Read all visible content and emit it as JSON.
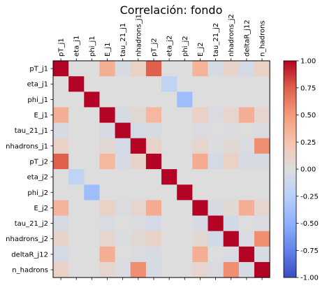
{
  "chart_data": {
    "type": "heatmap",
    "title": "Correlación: fondo",
    "labels": [
      "pT_j1",
      "eta_j1",
      "phi_j1",
      "E_j1",
      "tau_21_j1",
      "nhadrons_j1",
      "pT_j2",
      "eta_j2",
      "phi_j2",
      "E_j2",
      "tau_21_j2",
      "nhadrons_j2",
      "deltaR_j12",
      "n_hadrons"
    ],
    "matrix": [
      [
        1.0,
        0.0,
        0.0,
        0.38,
        -0.05,
        0.12,
        0.75,
        0.0,
        0.0,
        0.35,
        -0.05,
        0.1,
        -0.07,
        0.12
      ],
      [
        0.0,
        1.0,
        0.0,
        0.0,
        0.0,
        0.0,
        0.0,
        -0.2,
        0.0,
        0.0,
        0.0,
        0.0,
        0.0,
        0.0
      ],
      [
        0.0,
        0.0,
        1.0,
        0.0,
        0.0,
        0.0,
        0.0,
        0.0,
        -0.4,
        0.0,
        0.0,
        0.0,
        0.0,
        0.0
      ],
      [
        0.38,
        0.0,
        0.0,
        1.0,
        -0.05,
        0.05,
        0.32,
        0.0,
        0.0,
        0.12,
        -0.03,
        0.08,
        0.38,
        0.08
      ],
      [
        -0.05,
        0.0,
        0.0,
        -0.05,
        1.0,
        -0.07,
        -0.05,
        0.0,
        0.0,
        -0.03,
        0.0,
        -0.02,
        0.0,
        -0.03
      ],
      [
        0.12,
        0.0,
        0.0,
        0.05,
        -0.07,
        1.0,
        0.1,
        0.0,
        0.0,
        0.08,
        -0.02,
        0.05,
        -0.03,
        0.55
      ],
      [
        0.75,
        0.0,
        0.0,
        0.32,
        -0.05,
        0.1,
        1.0,
        0.0,
        0.0,
        0.4,
        -0.07,
        0.12,
        -0.05,
        -0.05
      ],
      [
        0.0,
        -0.2,
        0.0,
        0.0,
        0.0,
        0.0,
        0.0,
        1.0,
        0.0,
        0.0,
        0.0,
        0.0,
        0.0,
        0.0
      ],
      [
        0.0,
        0.0,
        -0.4,
        0.0,
        0.0,
        0.0,
        0.0,
        0.0,
        1.0,
        0.0,
        0.0,
        0.0,
        0.0,
        0.0
      ],
      [
        0.35,
        0.0,
        0.0,
        0.12,
        -0.03,
        0.08,
        0.4,
        0.0,
        0.0,
        1.0,
        -0.05,
        0.05,
        0.38,
        0.08
      ],
      [
        -0.05,
        0.0,
        0.0,
        -0.03,
        0.0,
        -0.02,
        -0.07,
        0.0,
        0.0,
        -0.05,
        1.0,
        -0.08,
        0.0,
        -0.03
      ],
      [
        0.1,
        0.0,
        0.0,
        0.08,
        -0.02,
        0.05,
        0.12,
        0.0,
        0.0,
        0.05,
        -0.08,
        1.0,
        -0.03,
        0.55
      ],
      [
        -0.07,
        0.0,
        0.0,
        0.38,
        0.0,
        -0.03,
        -0.05,
        0.0,
        0.0,
        0.38,
        0.0,
        -0.03,
        1.0,
        -0.05
      ],
      [
        0.12,
        0.0,
        0.0,
        0.08,
        -0.03,
        0.55,
        -0.05,
        0.0,
        0.0,
        0.08,
        -0.03,
        0.55,
        -0.05,
        1.0
      ]
    ],
    "colorbar": {
      "colormap": "coolwarm",
      "range": [
        -1.0,
        1.0
      ],
      "ticks": [
        "1.00",
        "0.75",
        "0.50",
        "0.25",
        "0.00",
        "-0.25",
        "-0.50",
        "-0.75",
        "-1.00"
      ],
      "tick_values": [
        1.0,
        0.75,
        0.5,
        0.25,
        0.0,
        -0.25,
        -0.5,
        -0.75,
        -1.0
      ]
    }
  }
}
